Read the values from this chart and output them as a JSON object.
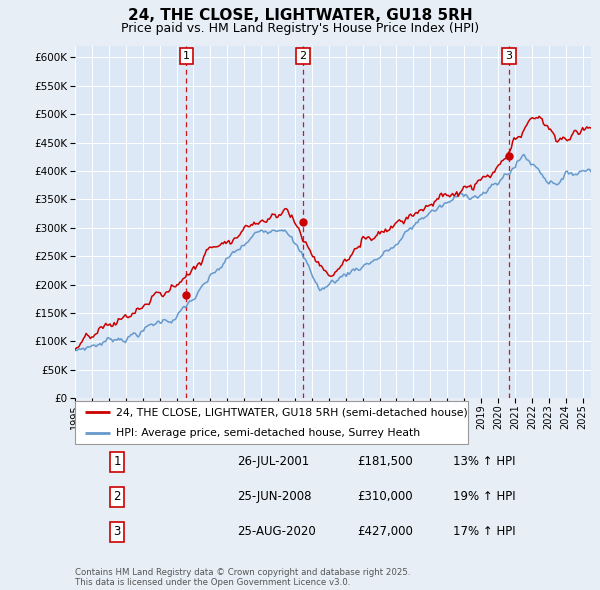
{
  "title": "24, THE CLOSE, LIGHTWATER, GU18 5RH",
  "subtitle": "Price paid vs. HM Land Registry's House Price Index (HPI)",
  "ylim": [
    0,
    620000
  ],
  "yticks": [
    0,
    50000,
    100000,
    150000,
    200000,
    250000,
    300000,
    350000,
    400000,
    450000,
    500000,
    550000,
    600000
  ],
  "xlim_start": 1995.0,
  "xlim_end": 2025.5,
  "background_color": "#e8eef5",
  "plot_bg_color": "#dce8f5",
  "grid_color": "#ffffff",
  "sale_dates": [
    2001.57,
    2008.48,
    2020.65
  ],
  "sale_prices": [
    181500,
    310000,
    427000
  ],
  "sale_labels": [
    "1",
    "2",
    "3"
  ],
  "legend_line1": "24, THE CLOSE, LIGHTWATER, GU18 5RH (semi-detached house)",
  "legend_line2": "HPI: Average price, semi-detached house, Surrey Heath",
  "table_rows": [
    [
      "1",
      "26-JUL-2001",
      "£181,500",
      "13% ↑ HPI"
    ],
    [
      "2",
      "25-JUN-2008",
      "£310,000",
      "19% ↑ HPI"
    ],
    [
      "3",
      "25-AUG-2020",
      "£427,000",
      "17% ↑ HPI"
    ]
  ],
  "footer": "Contains HM Land Registry data © Crown copyright and database right 2025.\nThis data is licensed under the Open Government Licence v3.0.",
  "red_color": "#cc0000",
  "blue_color": "#6699cc",
  "title_fontsize": 11,
  "subtitle_fontsize": 9
}
